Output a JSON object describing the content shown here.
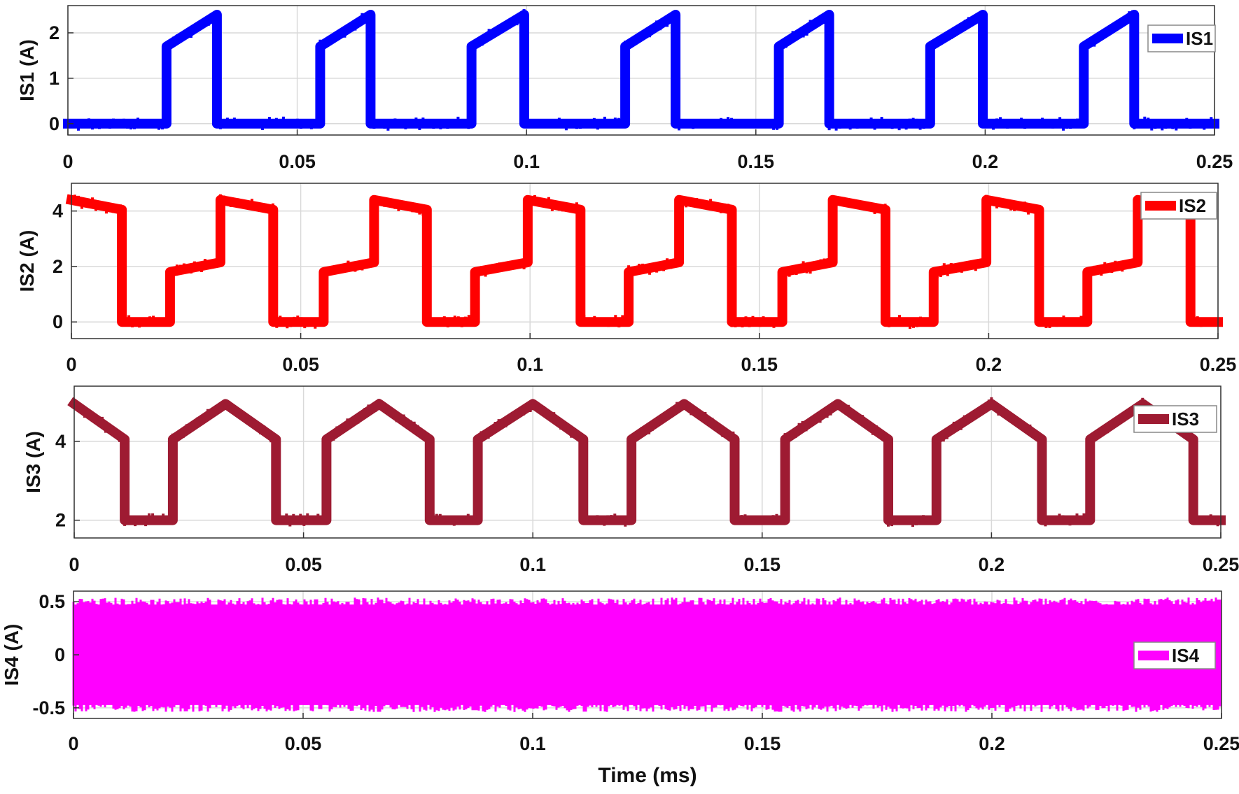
{
  "chart_data": [
    {
      "type": "line",
      "ylabel": "IS1 (A)",
      "xlabel": "",
      "xlim": [
        0,
        0.25
      ],
      "ylim": [
        -0.25,
        2.6
      ],
      "xticks": [
        0,
        0.05,
        0.1,
        0.15,
        0.2,
        0.25
      ],
      "xtick_labels": [
        "0",
        "0.05",
        "0.1",
        "0.15",
        "0.2",
        "0.25"
      ],
      "yticks": [
        0,
        1,
        2
      ],
      "ytick_labels": [
        "0",
        "1",
        "2"
      ],
      "grid": true,
      "legend_position": "top-right",
      "series": [
        {
          "name": "IS1",
          "color": "#0000ff",
          "x": [
            0,
            0.0215,
            0.0215,
            0.0325,
            0.0325,
            0.055,
            0.055,
            0.066,
            0.066,
            0.088,
            0.088,
            0.0995,
            0.0995,
            0.1215,
            0.1215,
            0.1325,
            0.1325,
            0.155,
            0.155,
            0.166,
            0.166,
            0.188,
            0.188,
            0.1995,
            0.1995,
            0.2215,
            0.2215,
            0.2325,
            0.2325,
            0.25
          ],
          "y": [
            0,
            0,
            1.7,
            2.4,
            0,
            0,
            1.7,
            2.4,
            0,
            0,
            1.7,
            2.4,
            0,
            0,
            1.7,
            2.4,
            0,
            0,
            1.7,
            2.4,
            0,
            0,
            1.7,
            2.4,
            0,
            0,
            1.7,
            2.4,
            0,
            0
          ]
        }
      ]
    },
    {
      "type": "line",
      "ylabel": "IS2 (A)",
      "xlabel": "",
      "xlim": [
        0,
        0.25
      ],
      "ylim": [
        -0.6,
        5.0
      ],
      "xticks": [
        0,
        0.05,
        0.1,
        0.15,
        0.2,
        0.25
      ],
      "xtick_labels": [
        "0",
        "0.05",
        "0.1",
        "0.15",
        "0.2",
        "0.25"
      ],
      "yticks": [
        0,
        2,
        4
      ],
      "ytick_labels": [
        "0",
        "2",
        "4"
      ],
      "grid": true,
      "legend_position": "top-right",
      "series": [
        {
          "name": "IS2",
          "color": "#ff0000",
          "x": [
            0,
            0.011,
            0.011,
            0.0215,
            0.0215,
            0.0325,
            0.0325,
            0.044,
            0.044,
            0.055,
            0.055,
            0.066,
            0.066,
            0.0775,
            0.0775,
            0.088,
            0.088,
            0.0995,
            0.0995,
            0.111,
            0.111,
            0.1215,
            0.1215,
            0.1325,
            0.1325,
            0.144,
            0.144,
            0.155,
            0.155,
            0.166,
            0.166,
            0.1775,
            0.1775,
            0.188,
            0.188,
            0.1995,
            0.1995,
            0.211,
            0.211,
            0.2215,
            0.2215,
            0.2325,
            0.2325,
            0.244,
            0.244,
            0.25
          ],
          "y": [
            4.4,
            4.05,
            0,
            0,
            1.8,
            2.15,
            4.4,
            4.05,
            0,
            0,
            1.8,
            2.15,
            4.4,
            4.05,
            0,
            0,
            1.8,
            2.15,
            4.4,
            4.05,
            0,
            0,
            1.8,
            2.15,
            4.4,
            4.05,
            0,
            0,
            1.8,
            2.15,
            4.4,
            4.05,
            0,
            0,
            1.8,
            2.15,
            4.4,
            4.05,
            0,
            0,
            1.8,
            2.15,
            4.4,
            4.05,
            0,
            0
          ]
        }
      ]
    },
    {
      "type": "line",
      "ylabel": "IS3 (A)",
      "xlabel": "",
      "xlim": [
        0,
        0.25
      ],
      "ylim": [
        1.55,
        5.4
      ],
      "xticks": [
        0,
        0.05,
        0.1,
        0.15,
        0.2,
        0.25
      ],
      "xtick_labels": [
        "0",
        "0.05",
        "0.1",
        "0.15",
        "0.2",
        "0.25"
      ],
      "yticks": [
        2,
        4
      ],
      "ytick_labels": [
        "2",
        "4"
      ],
      "grid": true,
      "legend_position": "top-right",
      "series": [
        {
          "name": "IS3",
          "color": "#9e1b32",
          "x": [
            0,
            0.011,
            0.011,
            0.0215,
            0.0215,
            0.033,
            0.044,
            0.044,
            0.055,
            0.055,
            0.0665,
            0.0775,
            0.0775,
            0.088,
            0.088,
            0.1,
            0.111,
            0.111,
            0.1215,
            0.1215,
            0.133,
            0.144,
            0.144,
            0.155,
            0.155,
            0.1665,
            0.1775,
            0.1775,
            0.188,
            0.188,
            0.2,
            0.211,
            0.211,
            0.2215,
            0.2215,
            0.233,
            0.244,
            0.244,
            0.25
          ],
          "y": [
            4.95,
            4.05,
            2.0,
            2.0,
            4.05,
            4.95,
            4.05,
            2.0,
            2.0,
            4.05,
            4.95,
            4.05,
            2.0,
            2.0,
            4.05,
            4.95,
            4.05,
            2.0,
            2.0,
            4.05,
            4.95,
            4.05,
            2.0,
            2.0,
            4.05,
            4.95,
            4.05,
            2.0,
            2.0,
            4.05,
            4.95,
            4.05,
            2.0,
            2.0,
            4.05,
            4.95,
            4.05,
            2.0,
            2.0
          ]
        }
      ]
    },
    {
      "type": "area",
      "ylabel": "IS4 (A)",
      "xlabel": "Time (ms)",
      "xlim": [
        0,
        0.25
      ],
      "ylim": [
        -0.6,
        0.6
      ],
      "xticks": [
        0,
        0.05,
        0.1,
        0.15,
        0.2,
        0.25
      ],
      "xtick_labels": [
        "0",
        "0.05",
        "0.1",
        "0.15",
        "0.2",
        "0.25"
      ],
      "yticks": [
        -0.5,
        0,
        0.5
      ],
      "ytick_labels": [
        "-0.5",
        "0",
        "0.5"
      ],
      "grid": true,
      "legend_position": "right",
      "series": [
        {
          "name": "IS4",
          "color": "#ff00ff",
          "x": [
            0,
            0.25
          ],
          "upper": [
            0.5,
            0.5
          ],
          "lower": [
            -0.5,
            -0.5
          ]
        }
      ]
    }
  ]
}
